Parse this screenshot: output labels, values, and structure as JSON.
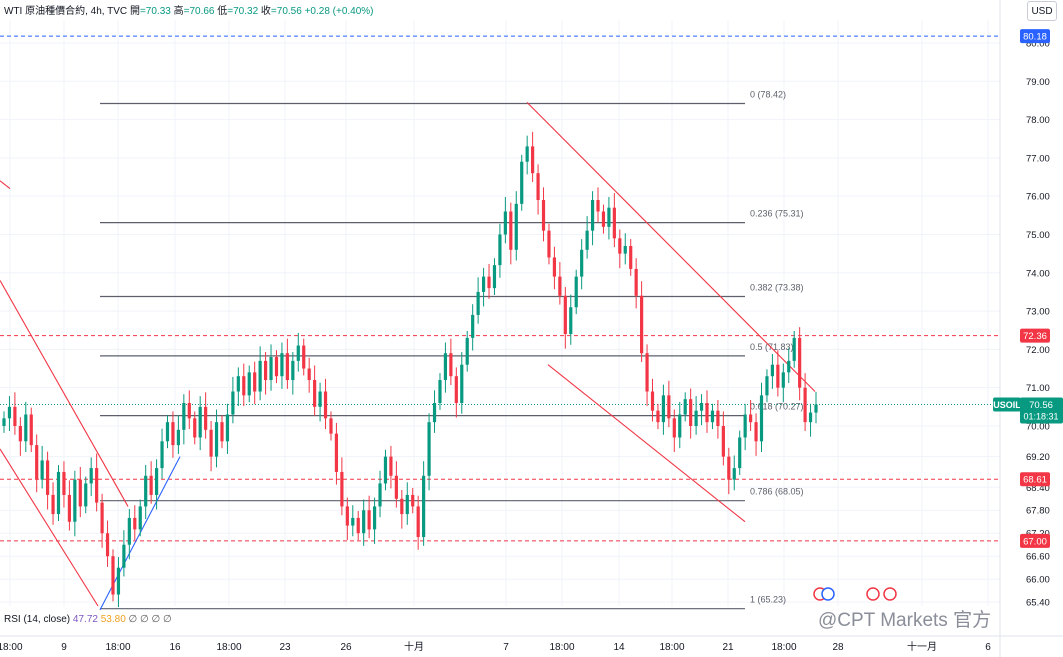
{
  "header": {
    "symbol": "WTI 原油種價合約, 4h, TVC",
    "open_label": "開",
    "open": "=70.33",
    "high_label": "高",
    "high": "=70.66",
    "low_label": "低",
    "low": "=70.32",
    "close_label": "收",
    "close": "=70.56",
    "change": "+0.28 (+0.40%)"
  },
  "currency": "USD",
  "rsi": {
    "label": "RSI (14, close)",
    "value1": "47.72",
    "value2": "53.80",
    "placeholders": "∅ ∅ ∅ ∅"
  },
  "watermark": "@CPT Markets 官方",
  "chart_data": {
    "type": "candlestick",
    "y_range": [
      65.3,
      80.6
    ],
    "y_ticks": [
      "65.40",
      "66.00",
      "66.60",
      "67.20",
      "67.80",
      "68.40",
      "69.20",
      "70.00",
      "71.00",
      "72.00",
      "73.00",
      "74.00",
      "75.00",
      "76.00",
      "77.00",
      "78.00",
      "79.00",
      "80.00"
    ],
    "x_ticks": [
      "18:00",
      "9",
      "18:00",
      "16",
      "18:00",
      "23",
      "26",
      "十月",
      "7",
      "18:00",
      "14",
      "18:00",
      "21",
      "18:00",
      "28",
      "十一月",
      "6"
    ],
    "fib_levels": [
      {
        "label": "0 (78.42)",
        "price": 78.42
      },
      {
        "label": "0.236 (75.31)",
        "price": 75.31
      },
      {
        "label": "0.382 (73.38)",
        "price": 73.38
      },
      {
        "label": "0.5 (71.83)",
        "price": 71.83
      },
      {
        "label": "0.618 (70.27)",
        "price": 70.27
      },
      {
        "label": "0.786 (68.05)",
        "price": 68.05
      },
      {
        "label": "1 (65.23)",
        "price": 65.23
      }
    ],
    "horizontal_lines": [
      {
        "price": 80.18,
        "label": "80.18",
        "color": "#2962ff"
      },
      {
        "price": 72.36,
        "label": "72.36",
        "color": "#f23645"
      },
      {
        "price": 68.61,
        "label": "68.61",
        "color": "#f23645"
      },
      {
        "price": 67.0,
        "label": "67.00",
        "color": "#f23645"
      }
    ],
    "last_price": {
      "price": 70.56,
      "symbol": "USOIL",
      "value": "70.56",
      "countdown": "01:18:31",
      "color": "#089981"
    },
    "candles_close": [
      70.2,
      70.5,
      70.0,
      69.6,
      70.3,
      69.5,
      68.6,
      69.1,
      68.2,
      67.7,
      68.8,
      68.2,
      67.5,
      68.6,
      67.9,
      68.5,
      68.9,
      68.0,
      67.2,
      66.6,
      65.6,
      66.3,
      66.9,
      67.6,
      67.3,
      67.9,
      68.7,
      68.2,
      68.9,
      69.6,
      70.1,
      69.5,
      69.9,
      70.6,
      70.2,
      69.7,
      70.5,
      69.9,
      69.2,
      70.1,
      69.6,
      70.3,
      70.9,
      71.3,
      70.8,
      71.4,
      70.9,
      71.7,
      71.2,
      71.8,
      71.3,
      71.9,
      71.2,
      71.7,
      72.1,
      71.5,
      71.2,
      70.5,
      70.9,
      70.2,
      69.8,
      68.8,
      67.9,
      67.4,
      67.6,
      67.2,
      67.8,
      67.3,
      67.9,
      68.5,
      69.2,
      68.7,
      68.1,
      67.7,
      68.2,
      67.9,
      67.1,
      68.7,
      70.1,
      70.6,
      71.2,
      71.9,
      71.3,
      70.6,
      71.6,
      72.3,
      72.9,
      73.5,
      73.9,
      73.6,
      74.2,
      75.0,
      75.6,
      74.6,
      75.8,
      76.9,
      77.3,
      76.6,
      75.9,
      75.1,
      74.4,
      73.9,
      73.4,
      72.4,
      73.1,
      73.9,
      74.6,
      75.1,
      75.9,
      75.6,
      75.2,
      75.7,
      74.9,
      74.5,
      74.7,
      74.1,
      73.4,
      71.9,
      70.9,
      70.4,
      70.1,
      70.8,
      70.2,
      69.7,
      70.3,
      70.7,
      70.0,
      70.4,
      70.6,
      70.1,
      70.4,
      70.0,
      69.2,
      68.6,
      68.9,
      69.7,
      70.3,
      70.1,
      69.6,
      70.8,
      71.3,
      71.6,
      71.0,
      71.4,
      71.7,
      72.3,
      71.0,
      70.1,
      70.35,
      70.56
    ]
  }
}
